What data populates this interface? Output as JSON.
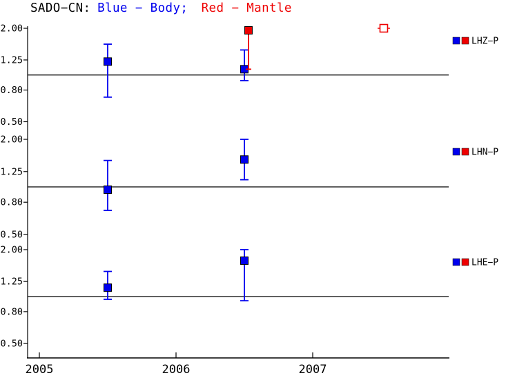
{
  "title": {
    "station": "SADO−CN:",
    "body": "Blue − Body;",
    "mantle": "Red − Mantle"
  },
  "colors": {
    "body": "#0000ee",
    "mantle": "#ee0000",
    "axis": "#000000",
    "background": "#ffffff"
  },
  "chart_data": {
    "type": "scatter",
    "title": "SADO−CN: Blue − Body; Red − Mantle",
    "layout_hint": "three stacked log-scale panels sharing one time axis, legends at right, reference line at 1.0 in each panel",
    "x": {
      "label": "",
      "tick_values": [
        2005,
        2006,
        2007
      ],
      "tick_labels": [
        "2005",
        "2006",
        "2007"
      ],
      "range_years": [
        2004.9,
        2008.0
      ]
    },
    "y": {
      "scale": "log",
      "range": [
        0.5,
        2.0
      ],
      "tick_values": [
        2.0,
        1.25,
        0.8,
        0.5
      ],
      "tick_labels": [
        "2.00",
        "1.25",
        "0.80",
        "0.50"
      ],
      "reference_line": 1.0
    },
    "panels": [
      {
        "legend": "LHZ−P",
        "series": [
          {
            "name": "Body",
            "color_key": "body",
            "marker": "filled-square",
            "points": [
              {
                "x": 2005.5,
                "y": 1.22,
                "y_lo": 0.72,
                "y_hi": 1.58
              },
              {
                "x": 2006.5,
                "y": 1.09,
                "y_lo": 0.92,
                "y_hi": 1.45
              }
            ]
          },
          {
            "name": "Mantle",
            "color_key": "mantle",
            "marker": "filled-square",
            "points": [
              {
                "x": 2006.53,
                "y": 1.94,
                "y_lo": 1.09
              }
            ]
          },
          {
            "name": "Mantle",
            "color_key": "mantle",
            "marker": "open-square",
            "points": [
              {
                "x": 2007.52,
                "y": 2.0
              }
            ]
          }
        ]
      },
      {
        "legend": "LHN−P",
        "series": [
          {
            "name": "Body",
            "color_key": "body",
            "marker": "filled-square",
            "points": [
              {
                "x": 2005.5,
                "y": 0.96,
                "y_lo": 0.71,
                "y_hi": 1.47
              },
              {
                "x": 2006.5,
                "y": 1.49,
                "y_lo": 1.11,
                "y_hi": 2.0
              }
            ]
          }
        ]
      },
      {
        "legend": "LHE−P",
        "series": [
          {
            "name": "Body",
            "color_key": "body",
            "marker": "filled-square",
            "points": [
              {
                "x": 2005.5,
                "y": 1.14,
                "y_lo": 0.96,
                "y_hi": 1.45
              },
              {
                "x": 2006.5,
                "y": 1.7,
                "y_lo": 0.94,
                "y_hi": 2.0
              }
            ]
          }
        ]
      }
    ]
  }
}
